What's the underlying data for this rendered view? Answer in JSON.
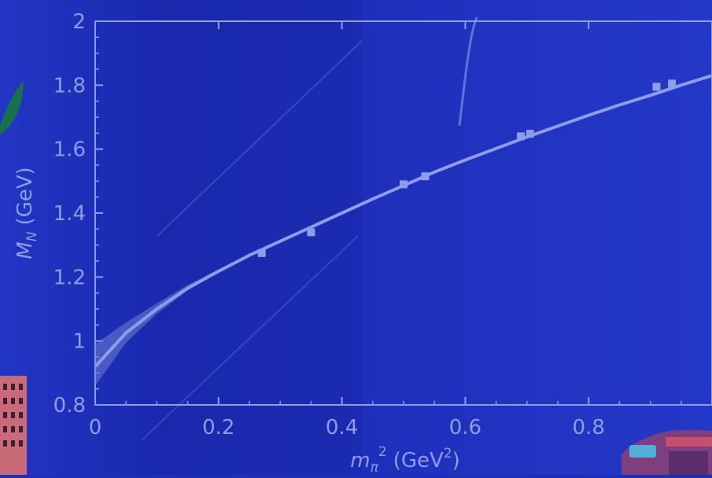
{
  "chart_data": {
    "type": "line",
    "xlabel": "m_π² (GeV²)",
    "xlabel_parts": {
      "symbol": "m",
      "symbol_sub": "π",
      "symbol_sup": "2",
      "unit_open": "(GeV",
      "unit_sup": "2",
      "unit_close": ")"
    },
    "ylabel": "M_N (GeV)",
    "ylabel_parts": {
      "symbol": "M",
      "symbol_sub": "N",
      "unit": "(GeV)"
    },
    "xlim": [
      0,
      1.0
    ],
    "ylim": [
      0.8,
      2.0
    ],
    "x_ticks": [
      0,
      0.2,
      0.4,
      0.6,
      0.8
    ],
    "x_tick_labels": [
      "0",
      "0.2",
      "0.4",
      "0.6",
      "0.8"
    ],
    "y_ticks": [
      0.8,
      1.0,
      1.2,
      1.4,
      1.6,
      1.8,
      2.0
    ],
    "y_tick_labels": [
      "0.8",
      "1",
      "1.2",
      "1.4",
      "1.6",
      "1.8",
      "2"
    ],
    "grid": false,
    "series": [
      {
        "kind": "fit",
        "x": [
          0.0,
          0.05,
          0.1,
          0.15,
          0.2,
          0.25,
          0.3,
          0.35,
          0.4,
          0.45,
          0.5,
          0.55,
          0.6,
          0.65,
          0.7,
          0.75,
          0.8,
          0.85,
          0.9,
          0.95,
          1.0
        ],
        "y": [
          0.92,
          1.025,
          1.1,
          1.165,
          1.218,
          1.268,
          1.312,
          1.356,
          1.4,
          1.444,
          1.486,
          1.528,
          1.566,
          1.602,
          1.638,
          1.672,
          1.706,
          1.738,
          1.768,
          1.8,
          1.83
        ],
        "band_lower": [
          0.86,
          0.995,
          1.085,
          1.158,
          1.214,
          1.266,
          1.311,
          1.356,
          1.4,
          1.444,
          1.486,
          1.528,
          1.566,
          1.602,
          1.638,
          1.672,
          1.706,
          1.738,
          1.768,
          1.8,
          1.83
        ],
        "band_upper": [
          0.99,
          1.058,
          1.118,
          1.175,
          1.224,
          1.271,
          1.314,
          1.357,
          1.401,
          1.445,
          1.487,
          1.529,
          1.567,
          1.603,
          1.639,
          1.673,
          1.707,
          1.739,
          1.769,
          1.801,
          1.831
        ]
      },
      {
        "kind": "points",
        "x": [
          0.27,
          0.35,
          0.5,
          0.535,
          0.69,
          0.705,
          0.91,
          0.935
        ],
        "y": [
          1.275,
          1.34,
          1.49,
          1.515,
          1.64,
          1.648,
          1.795,
          1.805
        ],
        "yerr": [
          0.012,
          0.012,
          0.01,
          0.01,
          0.01,
          0.01,
          0.012,
          0.012
        ]
      }
    ],
    "colors": {
      "background": "#1d2fb8",
      "axis": "#8f9ce6",
      "curve": "#8f9ce6",
      "band": "#6f7fd6"
    }
  }
}
